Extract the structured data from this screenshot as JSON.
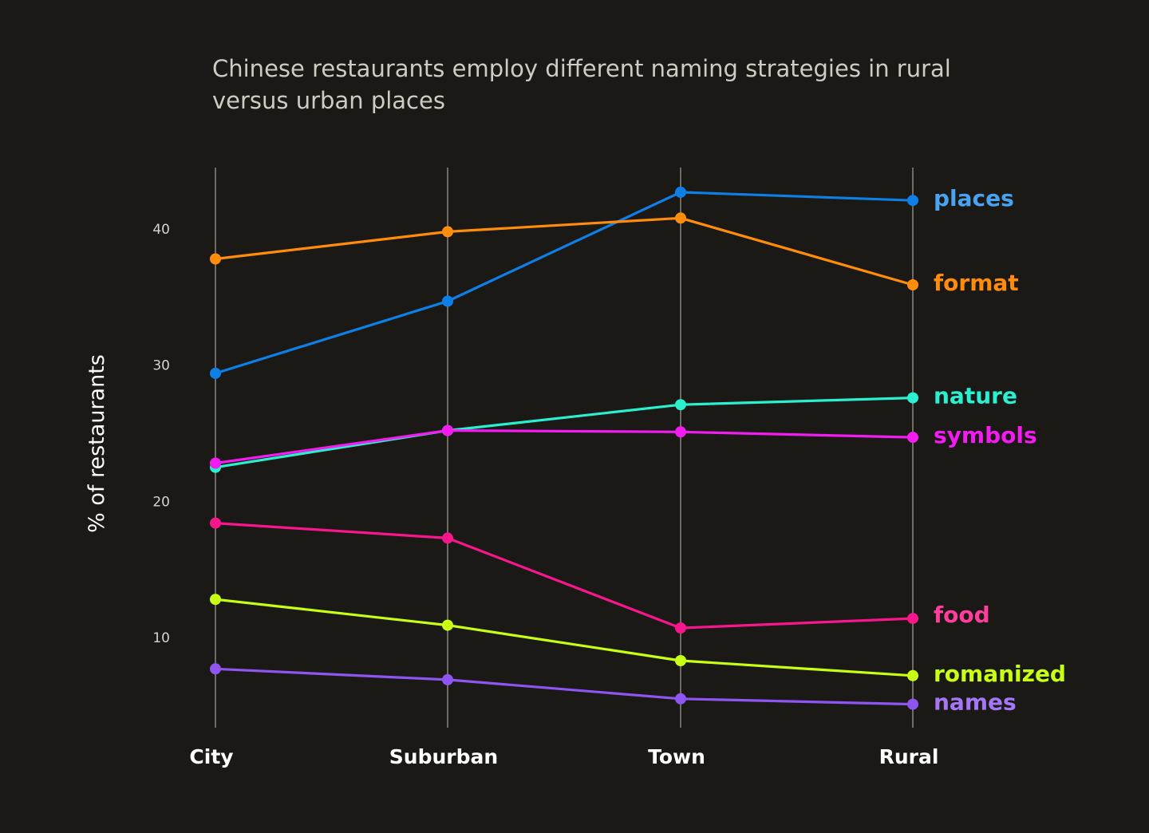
{
  "title": "Chinese restaurants employ different naming strategies in rural versus urban places",
  "colors": {
    "background": "#1b1916",
    "title": "#cfcbc2",
    "axis_line": "#6e6b66"
  },
  "chart_data": {
    "type": "line",
    "title": "Chinese restaurants employ different naming strategies in rural versus urban places",
    "xlabel": "",
    "ylabel": "% of restaurants",
    "categories": [
      "City",
      "Suburban",
      "Town",
      "Rural"
    ],
    "y_ticks": [
      "10",
      "20",
      "30",
      "40"
    ],
    "ylim": [
      4,
      45
    ],
    "grid": "vertical lines at each category",
    "legend": "direct labels at right end of each line",
    "series": [
      {
        "name": "places",
        "color": "#0f7fe8",
        "label_color": "#4aa3f0",
        "values": [
          29.4,
          34.7,
          42.7,
          42.1
        ]
      },
      {
        "name": "format",
        "color": "#ff8c0a",
        "label_color": "#ff8c0a",
        "values": [
          37.8,
          39.8,
          40.8,
          35.9
        ]
      },
      {
        "name": "nature",
        "color": "#2af0cf",
        "label_color": "#2af0cf",
        "values": [
          22.5,
          25.2,
          27.1,
          27.6
        ]
      },
      {
        "name": "symbols",
        "color": "#f21cf0",
        "label_color": "#f21cf0",
        "values": [
          22.8,
          25.2,
          25.1,
          24.7
        ]
      },
      {
        "name": "food",
        "color": "#f7168c",
        "label_color": "#ff3d9a",
        "values": [
          18.4,
          17.3,
          10.7,
          11.4
        ]
      },
      {
        "name": "romanized",
        "color": "#c8ff12",
        "label_color": "#c8ff12",
        "values": [
          12.8,
          10.9,
          8.3,
          7.2
        ]
      },
      {
        "name": "names",
        "color": "#8f55f2",
        "label_color": "#a477f7",
        "values": [
          7.7,
          6.9,
          5.5,
          5.1
        ]
      }
    ]
  }
}
